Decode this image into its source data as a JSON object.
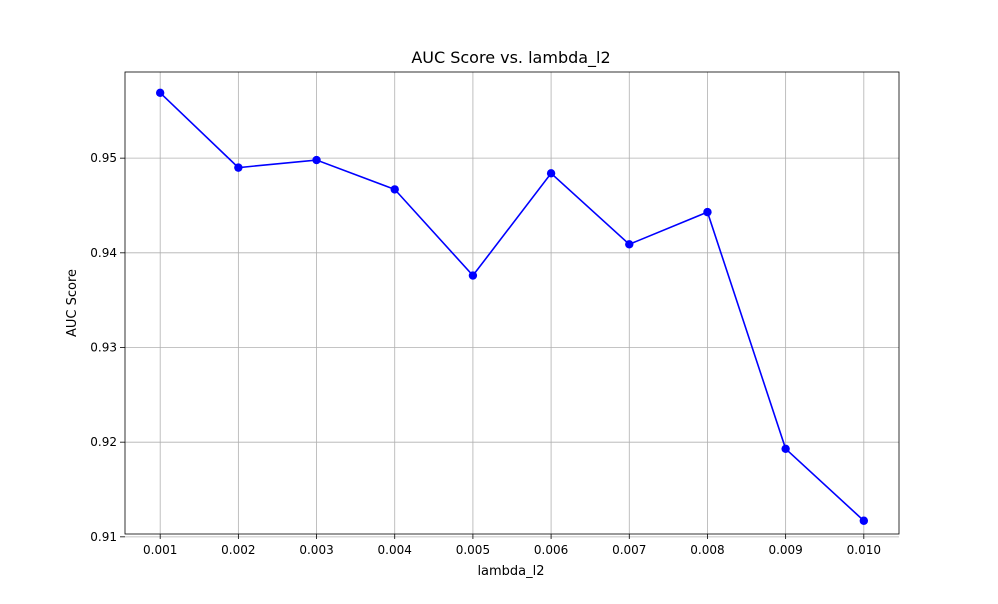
{
  "chart_data": {
    "type": "line",
    "title": "AUC Score vs. lambda_l2",
    "xlabel": "lambda_l2",
    "ylabel": "AUC Score",
    "x": [
      0.001,
      0.002,
      0.003,
      0.004,
      0.005,
      0.006,
      0.007,
      0.008,
      0.009,
      0.01
    ],
    "x_tick_labels": [
      "0.001",
      "0.002",
      "0.003",
      "0.004",
      "0.005",
      "0.006",
      "0.007",
      "0.008",
      "0.009",
      "0.010"
    ],
    "y_tick_values": [
      0.91,
      0.92,
      0.93,
      0.94,
      0.95
    ],
    "y_tick_labels": [
      "0.91",
      "0.92",
      "0.93",
      "0.94",
      "0.95"
    ],
    "xlim": [
      0.00055,
      0.01045
    ],
    "ylim": [
      0.9103,
      0.9591
    ],
    "grid": true,
    "series": [
      {
        "values": [
          0.9569,
          0.949,
          0.9498,
          0.9467,
          0.9376,
          0.9484,
          0.9409,
          0.9443,
          0.9193,
          0.9117
        ],
        "color": "#0000ff",
        "marker": "circle"
      }
    ]
  }
}
